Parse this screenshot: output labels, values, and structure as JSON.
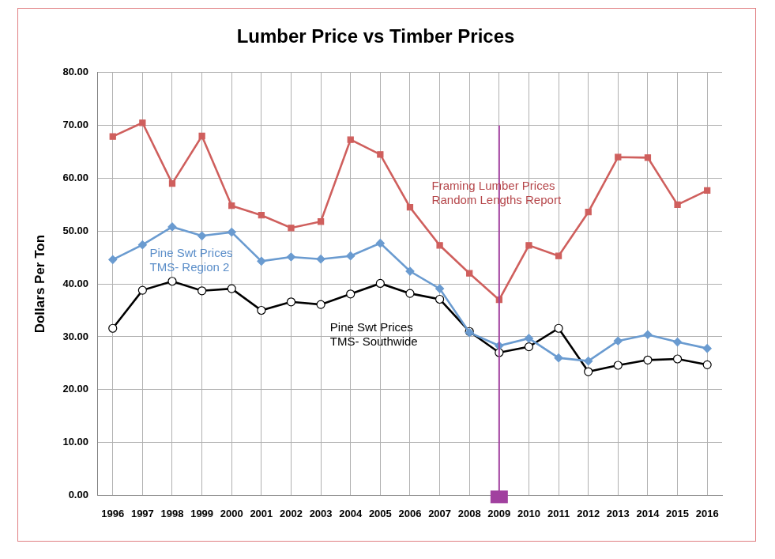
{
  "chart_data": {
    "type": "line",
    "title": "Lumber Price vs Timber Prices",
    "y_label": "Dollars Per Ton",
    "categories": [
      "1996",
      "1997",
      "1998",
      "1999",
      "2000",
      "2001",
      "2002",
      "2003",
      "2004",
      "2005",
      "2006",
      "2007",
      "2008",
      "2009",
      "2010",
      "2011",
      "2012",
      "2013",
      "2014",
      "2015",
      "2016"
    ],
    "series": [
      {
        "name": "Framing Lumber Prices\nRandom Lengths Report",
        "color": "#cf5f5d",
        "marker": "square",
        "values": [
          67.9,
          70.5,
          59.0,
          68.0,
          54.8,
          53.0,
          50.6,
          51.8,
          67.3,
          64.5,
          54.5,
          47.3,
          42.0,
          37.0,
          47.3,
          45.3,
          53.6,
          64.0,
          63.9,
          55.0,
          57.7
        ]
      },
      {
        "name": "Pine Swt Prices\nTMS- Region 2",
        "color": "#6a9bd0",
        "marker": "diamond",
        "values": [
          44.6,
          47.4,
          50.8,
          49.1,
          49.8,
          44.3,
          45.1,
          44.7,
          45.3,
          47.7,
          42.4,
          39.1,
          30.8,
          28.3,
          29.7,
          26.0,
          25.4,
          29.2,
          30.4,
          29.0,
          27.8
        ]
      },
      {
        "name": "Pine Swt Prices\nTMS- Southwide",
        "color": "#000000",
        "marker": "circle_open",
        "values": [
          31.6,
          38.8,
          40.5,
          38.7,
          39.1,
          35.0,
          36.6,
          36.1,
          38.1,
          40.1,
          38.2,
          37.1,
          31.0,
          27.0,
          28.1,
          31.6,
          23.4,
          24.6,
          25.6,
          25.8,
          24.7
        ]
      }
    ],
    "ylim": [
      0,
      80
    ],
    "yticks": [
      {
        "value": 0,
        "label": "0.00"
      },
      {
        "value": 10,
        "label": "10.00"
      },
      {
        "value": 20,
        "label": "20.00"
      },
      {
        "value": 30,
        "label": "30.00"
      },
      {
        "value": 40,
        "label": "40.00"
      },
      {
        "value": 50,
        "label": "50.00"
      },
      {
        "value": 60,
        "label": "60.00"
      },
      {
        "value": 70,
        "label": "70.00"
      },
      {
        "value": 80,
        "label": "80.00"
      }
    ],
    "grid": true,
    "highlight": {
      "x": "2009",
      "values": [
        0,
        70
      ],
      "color": "#a1409f"
    }
  }
}
